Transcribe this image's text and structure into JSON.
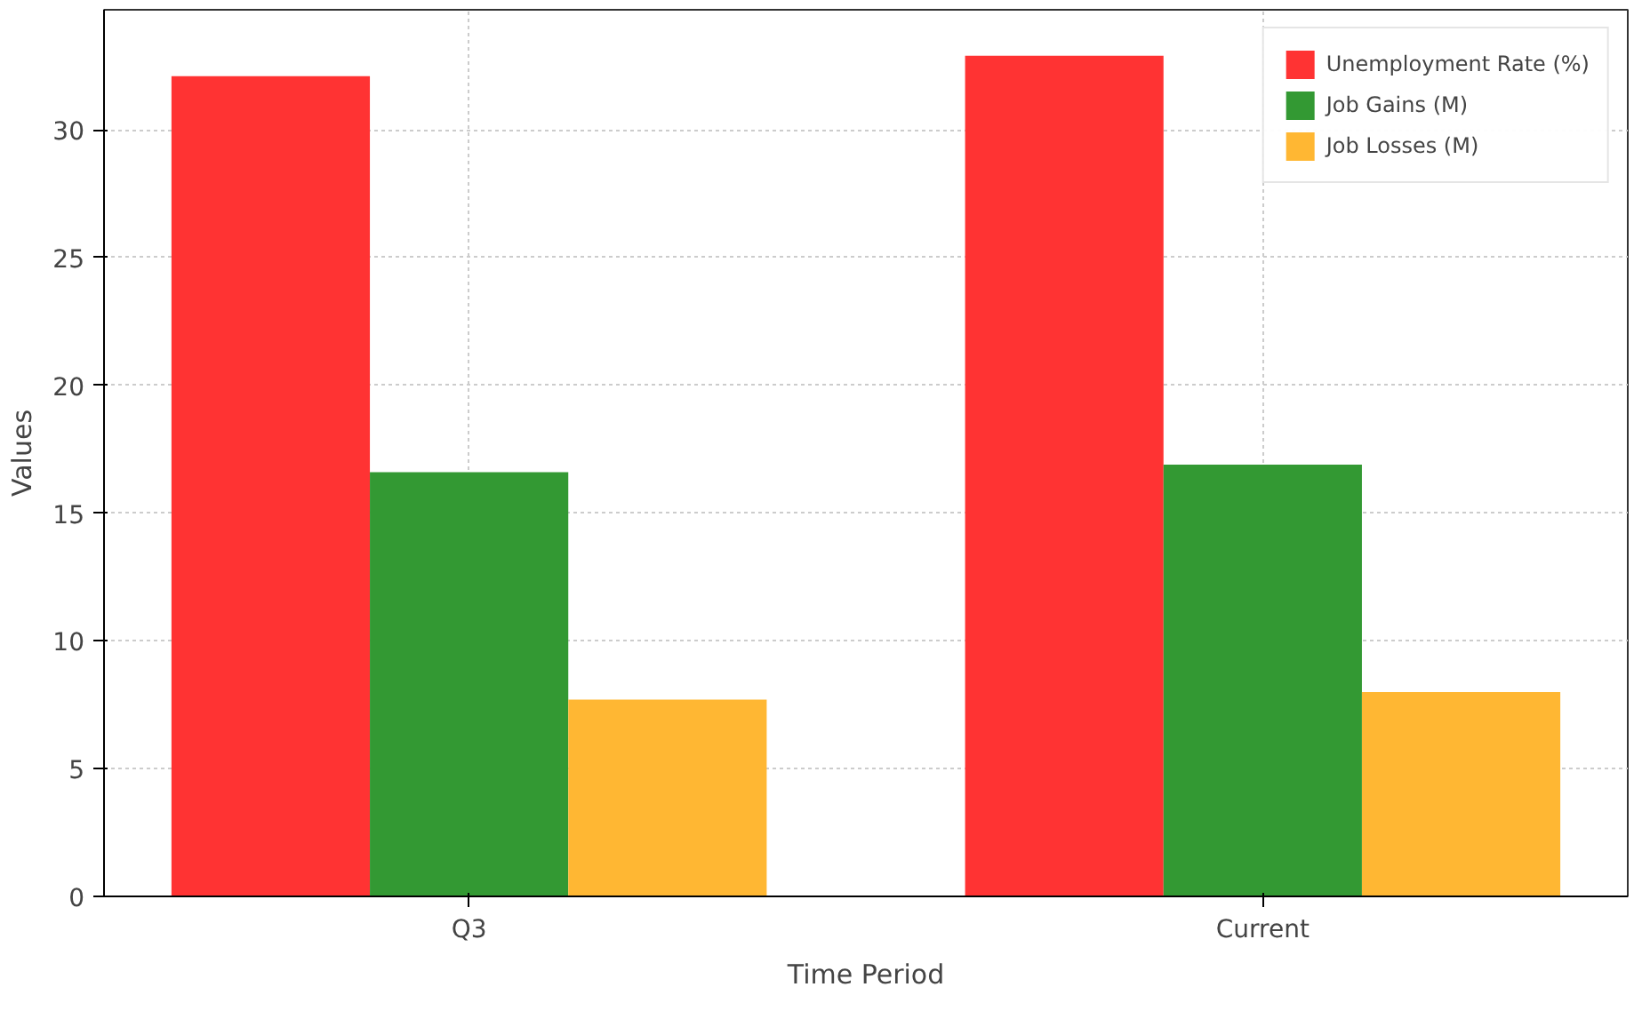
{
  "chart_data": {
    "type": "bar",
    "xlabel": "Time Period",
    "ylabel": "Values",
    "categories": [
      "Q3",
      "Current"
    ],
    "series": [
      {
        "name": "Unemployment Rate (%)",
        "color": "#ff3333",
        "values": [
          32.1,
          32.9
        ]
      },
      {
        "name": "Job Gains (M)",
        "color": "#339933",
        "values": [
          16.6,
          16.9
        ]
      },
      {
        "name": "Job Losses (M)",
        "color": "#ffb733",
        "values": [
          7.7,
          8.0
        ]
      }
    ],
    "ylim": [
      0,
      34.7
    ],
    "yticks": [
      0,
      5,
      10,
      15,
      20,
      25,
      30
    ],
    "grid": true,
    "legend": "top right"
  }
}
